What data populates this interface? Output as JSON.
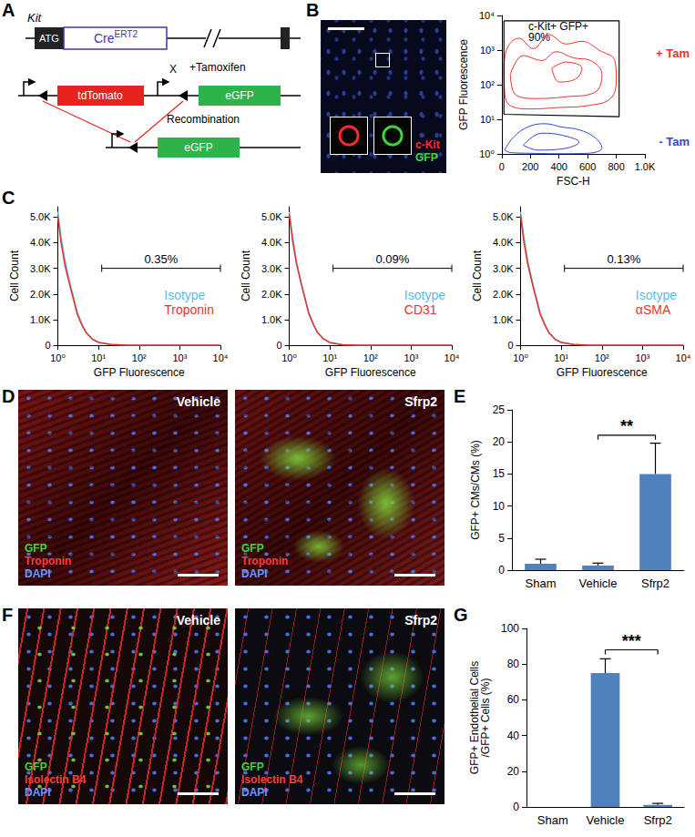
{
  "panels": {
    "A": {
      "letter": "A",
      "gene": "Kit",
      "start_codon": "ATG",
      "cre": "Cre",
      "cre_superscript": "ERT2",
      "reporter_1": "tdTomato",
      "reporter_2": "eGFP",
      "cross": "X",
      "treatment": "+Tamoxifen",
      "event": "Recombination",
      "product": "eGFP"
    },
    "B": {
      "letter": "B",
      "image_labels": [
        {
          "text": "c-Kit",
          "color": "#ff2a2a"
        },
        {
          "text": "GFP",
          "color": "#39d839"
        }
      ]
    },
    "C": {
      "letter": "C"
    },
    "D": {
      "letter": "D",
      "images": [
        "Vehicle",
        "Sfrp2"
      ],
      "stains": [
        {
          "text": "GFP",
          "color": "#39d839"
        },
        {
          "text": "Troponin",
          "color": "#ff3b3b"
        },
        {
          "text": "DAPI",
          "color": "#6b95ff"
        }
      ]
    },
    "E": {
      "letter": "E"
    },
    "F": {
      "letter": "F",
      "images": [
        "Vehicle",
        "Sfrp2"
      ],
      "stains": [
        {
          "text": "GFP",
          "color": "#39d839"
        },
        {
          "text": "Isolectin B4",
          "color": "#ff3b3b"
        },
        {
          "text": "DAPI",
          "color": "#6b95ff"
        }
      ]
    },
    "G": {
      "letter": "G"
    }
  },
  "chart_data": [
    {
      "type": "contour",
      "xlabel": "FSC-H",
      "ylabel": "GFP Fluorescence",
      "log": "y",
      "xlim": [
        0,
        1000
      ],
      "xticks": [
        0,
        200,
        400,
        600,
        800,
        {
          "value": 1000,
          "label": "1.0K"
        }
      ],
      "ylim": [
        1,
        10000
      ],
      "yticks": [
        {
          "value": 1,
          "label": "10⁰"
        },
        {
          "value": 10,
          "label": "10¹"
        },
        {
          "value": 100,
          "label": "10²"
        },
        {
          "value": 1000,
          "label": "10³"
        },
        {
          "value": 10000,
          "label": "10⁴"
        }
      ],
      "series": [
        {
          "name": "+ Tam",
          "color": "#e8332a",
          "contours": [
            [
              [
                15,
                300
              ],
              [
                40,
                1200
              ],
              [
                120,
                2200
              ],
              [
                220,
                1100
              ],
              [
                330,
                2800
              ],
              [
                450,
                1500
              ],
              [
                560,
                1800
              ],
              [
                680,
                1000
              ],
              [
                790,
                500
              ],
              [
                800,
                150
              ],
              [
                760,
                40
              ],
              [
                600,
                25
              ],
              [
                400,
                22
              ],
              [
                200,
                20
              ],
              [
                60,
                25
              ],
              [
                20,
                60
              ],
              [
                15,
                300
              ]
            ],
            [
              [
                60,
                200
              ],
              [
                150,
                700
              ],
              [
                280,
                500
              ],
              [
                380,
                900
              ],
              [
                500,
                600
              ],
              [
                620,
                500
              ],
              [
                700,
                200
              ],
              [
                650,
                60
              ],
              [
                450,
                45
              ],
              [
                250,
                40
              ],
              [
                100,
                50
              ],
              [
                60,
                200
              ]
            ],
            [
              [
                350,
                300
              ],
              [
                450,
                450
              ],
              [
                560,
                300
              ],
              [
                520,
                150
              ],
              [
                400,
                120
              ],
              [
                350,
                300
              ]
            ]
          ]
        },
        {
          "name": "- Tam",
          "color": "#3344dd",
          "contours": [
            [
              [
                20,
                1.3
              ],
              [
                80,
                3
              ],
              [
                180,
                6
              ],
              [
                300,
                7.5
              ],
              [
                420,
                6
              ],
              [
                540,
                5
              ],
              [
                650,
                3
              ],
              [
                700,
                1.5
              ],
              [
                600,
                1.05
              ],
              [
                400,
                1.02
              ],
              [
                200,
                1.05
              ],
              [
                60,
                1.1
              ],
              [
                20,
                1.3
              ]
            ],
            [
              [
                150,
                1.8
              ],
              [
                280,
                4
              ],
              [
                420,
                3.5
              ],
              [
                540,
                2.2
              ],
              [
                420,
                1.4
              ],
              [
                250,
                1.3
              ],
              [
                150,
                1.8
              ]
            ]
          ]
        }
      ],
      "gate": {
        "points": [
          [
            15,
            7000
          ],
          [
            820,
            7000
          ],
          [
            820,
            12
          ],
          [
            15,
            14
          ],
          [
            15,
            7000
          ]
        ],
        "labels": [
          "c-Kit+ GFP+",
          "90%"
        ]
      }
    },
    {
      "type": "line",
      "xlabel": "GFP Fluorescence",
      "ylabel": "Cell Count",
      "log": "x",
      "legend": "right",
      "xlim": [
        1,
        10000
      ],
      "xticks": [
        {
          "value": 1,
          "label": "10⁰"
        },
        {
          "value": 10,
          "label": "10¹"
        },
        {
          "value": 100,
          "label": "10²"
        },
        {
          "value": 1000,
          "label": "10³"
        },
        {
          "value": 10000,
          "label": "10⁴"
        }
      ],
      "ylim": [
        0,
        5400
      ],
      "yticks": [
        0,
        {
          "value": 1000,
          "label": "1.0K"
        },
        {
          "value": 2000,
          "label": "2.0K"
        },
        {
          "value": 3000,
          "label": "3.0K"
        },
        {
          "value": 4000,
          "label": "4.0K"
        },
        {
          "value": 5000,
          "label": "5.0K"
        }
      ],
      "x": [
        1,
        1.2,
        1.5,
        2,
        2.5,
        3,
        4,
        5,
        7,
        10,
        20,
        50,
        100,
        1000,
        10000
      ],
      "series": [
        {
          "name": "Isotype",
          "color": "#5fb9e8",
          "values": [
            5200,
            4200,
            3300,
            2400,
            1800,
            1300,
            800,
            500,
            250,
            120,
            30,
            5,
            2,
            0,
            0
          ]
        },
        {
          "name": "Troponin",
          "color": "#e8332a",
          "values": [
            5000,
            4000,
            3100,
            2300,
            1700,
            1200,
            750,
            480,
            240,
            110,
            30,
            6,
            2,
            0,
            0
          ]
        }
      ],
      "gate": {
        "x": [
          12,
          10000
        ],
        "y": 3000,
        "label": "0.35%"
      }
    },
    {
      "type": "line",
      "xlabel": "GFP Fluorescence",
      "ylabel": "Cell Count",
      "log": "x",
      "legend": "right",
      "xlim": [
        1,
        10000
      ],
      "xticks": [
        {
          "value": 1,
          "label": "10⁰"
        },
        {
          "value": 10,
          "label": "10¹"
        },
        {
          "value": 100,
          "label": "10²"
        },
        {
          "value": 1000,
          "label": "10³"
        },
        {
          "value": 10000,
          "label": "10⁴"
        }
      ],
      "ylim": [
        0,
        5400
      ],
      "yticks": [
        0,
        {
          "value": 1000,
          "label": "1.0K"
        },
        {
          "value": 2000,
          "label": "2.0K"
        },
        {
          "value": 3000,
          "label": "3.0K"
        },
        {
          "value": 4000,
          "label": "4.0K"
        },
        {
          "value": 5000,
          "label": "5.0K"
        }
      ],
      "x": [
        1,
        1.2,
        1.5,
        2,
        2.5,
        3,
        4,
        5,
        7,
        10,
        20,
        50,
        100,
        1000,
        10000
      ],
      "series": [
        {
          "name": "Isotype",
          "color": "#5fb9e8",
          "values": [
            5200,
            4300,
            3300,
            2400,
            1800,
            1300,
            800,
            500,
            250,
            110,
            25,
            4,
            1,
            0,
            0
          ]
        },
        {
          "name": "CD31",
          "color": "#e8332a",
          "values": [
            5100,
            4100,
            3200,
            2350,
            1750,
            1250,
            780,
            490,
            245,
            105,
            24,
            4,
            1,
            0,
            0
          ]
        }
      ],
      "gate": {
        "x": [
          12,
          10000
        ],
        "y": 3000,
        "label": "0.09%"
      }
    },
    {
      "type": "line",
      "xlabel": "GFP Fluorescence",
      "ylabel": "Cell Count",
      "log": "x",
      "legend": "right",
      "xlim": [
        1,
        10000
      ],
      "xticks": [
        {
          "value": 1,
          "label": "10⁰"
        },
        {
          "value": 10,
          "label": "10¹"
        },
        {
          "value": 100,
          "label": "10²"
        },
        {
          "value": 1000,
          "label": "10³"
        },
        {
          "value": 10000,
          "label": "10⁴"
        }
      ],
      "ylim": [
        0,
        5400
      ],
      "yticks": [
        0,
        {
          "value": 1000,
          "label": "1.0K"
        },
        {
          "value": 2000,
          "label": "2.0K"
        },
        {
          "value": 3000,
          "label": "3.0K"
        },
        {
          "value": 4000,
          "label": "4.0K"
        },
        {
          "value": 5000,
          "label": "5.0K"
        }
      ],
      "x": [
        1,
        1.2,
        1.5,
        2,
        2.5,
        3,
        4,
        5,
        7,
        10,
        20,
        50,
        100,
        1000,
        10000
      ],
      "series": [
        {
          "name": "Isotype",
          "color": "#5fb9e8",
          "values": [
            5200,
            4250,
            3300,
            2400,
            1800,
            1300,
            800,
            500,
            250,
            115,
            28,
            5,
            1,
            0,
            0
          ]
        },
        {
          "name": "αSMA",
          "color": "#e8332a",
          "values": [
            5050,
            4050,
            3150,
            2320,
            1720,
            1230,
            770,
            485,
            240,
            108,
            27,
            5,
            1,
            0,
            0
          ]
        }
      ],
      "gate": {
        "x": [
          12,
          10000
        ],
        "y": 3000,
        "label": "0.13%"
      }
    },
    {
      "type": "bar",
      "ylabel": "GFP+ CMs/CMs (%)",
      "categories": [
        "Sham",
        "Vehicle",
        "Sfrp2"
      ],
      "values": [
        1.0,
        0.7,
        15
      ],
      "errors": [
        0.7,
        0.4,
        4.8
      ],
      "color": "#4f81bd",
      "ylim": [
        0,
        25
      ],
      "yticks": [
        0,
        5,
        10,
        15,
        20,
        25
      ],
      "significance": {
        "between": [
          "Vehicle",
          "Sfrp2"
        ],
        "label": "**"
      }
    },
    {
      "type": "bar",
      "ylabel": "GFP+ Endothelial Cells\n/GFP+ Cells (%)",
      "categories": [
        "Sham",
        "Vehicle",
        "Sfrp2"
      ],
      "values": [
        0,
        75,
        1.2
      ],
      "errors": [
        0,
        8,
        0.8
      ],
      "color": "#4f81bd",
      "ylim": [
        0,
        100
      ],
      "yticks": [
        0,
        20,
        40,
        60,
        80,
        100
      ],
      "significance": {
        "between": [
          "Vehicle",
          "Sfrp2"
        ],
        "label": "***"
      }
    }
  ]
}
